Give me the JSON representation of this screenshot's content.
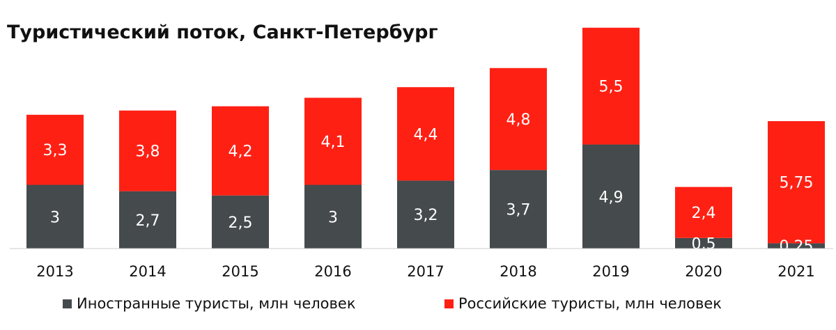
{
  "chart_data": {
    "type": "bar",
    "stacked": true,
    "title": "Туристический поток, Санкт-Петербург",
    "categories": [
      "2013",
      "2014",
      "2015",
      "2016",
      "2017",
      "2018",
      "2019",
      "2020",
      "2021"
    ],
    "series": [
      {
        "name": "Иностранные туристы, млн человек",
        "color": "#454a4c",
        "values": [
          3,
          2.7,
          2.5,
          3,
          3.2,
          3.7,
          4.9,
          0.5,
          0.25
        ],
        "labels": [
          "3",
          "2,7",
          "2,5",
          "3",
          "3,2",
          "3,7",
          "4,9",
          "0,5",
          "0,25"
        ]
      },
      {
        "name": "Российские туристы, млн человек",
        "color": "#ff2014",
        "values": [
          3.3,
          3.8,
          4.2,
          4.1,
          4.4,
          4.8,
          5.5,
          2.4,
          5.75
        ],
        "labels": [
          "3,3",
          "3,8",
          "4,2",
          "4,1",
          "4,4",
          "4,8",
          "5,5",
          "2,4",
          "5,75"
        ]
      }
    ],
    "ylim": [
      0,
      10.5
    ],
    "grid": false,
    "legend": "bottom"
  }
}
